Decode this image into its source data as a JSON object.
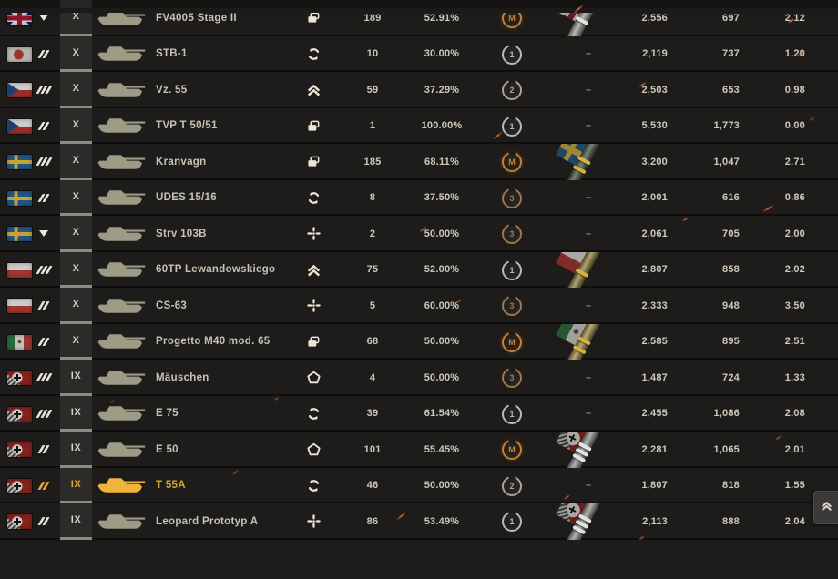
{
  "colors": {
    "highlight_gold": "#d8a62e",
    "text": "#ccc9ba",
    "badge_mastery": "#cd7e2c",
    "badge_class1": "#b4bac0",
    "badge_class2": "#aba393",
    "badge_class3": "#9d7751",
    "ember": "#ff6e32"
  },
  "no_marks_symbol": "–",
  "scroll_button": {
    "icon": "double-chevron-up"
  },
  "table": {
    "rows": [
      {
        "nation": "uk",
        "marker": "triangle-down",
        "tier": "X",
        "name": "FV4005 Stage II",
        "role": "cards",
        "battles": "189",
        "win_rate": "52.91%",
        "badge": "M",
        "marks": {
          "nation": "uk",
          "rings": 1,
          "barrel_color": "#a9a59d",
          "ring_color": "#e4e4e2"
        },
        "avg_damage": "2,556",
        "avg_xp": "697",
        "ratio": "2.12",
        "highlighted": false
      },
      {
        "nation": "japan",
        "marker": "double-slash",
        "tier": "X",
        "name": "STB-1",
        "role": "circle-arrows",
        "battles": "10",
        "win_rate": "30.00%",
        "badge": "1",
        "marks": null,
        "avg_damage": "2,119",
        "avg_xp": "737",
        "ratio": "1.20",
        "highlighted": false
      },
      {
        "nation": "czechia",
        "marker": "triple-slash",
        "tier": "X",
        "name": "Vz. 55",
        "role": "double-chevron-up",
        "battles": "59",
        "win_rate": "37.29%",
        "badge": "2",
        "marks": null,
        "avg_damage": "2,503",
        "avg_xp": "653",
        "ratio": "0.98",
        "highlighted": false
      },
      {
        "nation": "czechia",
        "marker": "double-slash",
        "tier": "X",
        "name": "TVP T 50/51",
        "role": "cards",
        "battles": "1",
        "win_rate": "100.00%",
        "badge": "1",
        "marks": null,
        "avg_damage": "5,530",
        "avg_xp": "1,773",
        "ratio": "0.00",
        "highlighted": false
      },
      {
        "nation": "sweden",
        "marker": "triple-slash",
        "tier": "X",
        "name": "Kranvagn",
        "role": "cards",
        "battles": "185",
        "win_rate": "68.11%",
        "badge": "M",
        "marks": {
          "nation": "sweden",
          "rings": 2,
          "barrel_color": "#53614c",
          "ring_color": "#d8b23e"
        },
        "avg_damage": "3,200",
        "avg_xp": "1,047",
        "ratio": "2.71",
        "highlighted": false
      },
      {
        "nation": "sweden",
        "marker": "double-slash",
        "tier": "X",
        "name": "UDES 15/16",
        "role": "circle-arrows",
        "battles": "8",
        "win_rate": "37.50%",
        "badge": "3",
        "marks": null,
        "avg_damage": "2,001",
        "avg_xp": "616",
        "ratio": "0.86",
        "highlighted": false
      },
      {
        "nation": "sweden",
        "marker": "triangle-down",
        "tier": "X",
        "name": "Strv 103B",
        "role": "crosshair",
        "battles": "2",
        "win_rate": "50.00%",
        "badge": "3",
        "marks": null,
        "avg_damage": "2,061",
        "avg_xp": "705",
        "ratio": "2.00",
        "highlighted": false
      },
      {
        "nation": "poland",
        "marker": "triple-slash",
        "tier": "X",
        "name": "60TP Lewandowskiego",
        "role": "double-chevron-up",
        "battles": "75",
        "win_rate": "52.00%",
        "badge": "1",
        "marks": {
          "nation": "poland",
          "rings": 1,
          "barrel_color": "#9a8848",
          "ring_color": "#d8b23e"
        },
        "avg_damage": "2,807",
        "avg_xp": "858",
        "ratio": "2.02",
        "highlighted": false
      },
      {
        "nation": "poland",
        "marker": "double-slash",
        "tier": "X",
        "name": "CS-63",
        "role": "crosshair",
        "battles": "5",
        "win_rate": "60.00%",
        "badge": "3",
        "marks": null,
        "avg_damage": "2,333",
        "avg_xp": "948",
        "ratio": "3.50",
        "highlighted": false
      },
      {
        "nation": "italy",
        "marker": "double-slash",
        "tier": "X",
        "name": "Progetto M40 mod. 65",
        "role": "cards",
        "battles": "68",
        "win_rate": "50.00%",
        "badge": "M",
        "marks": {
          "nation": "italy",
          "rings": 2,
          "barrel_color": "#a8924f",
          "ring_color": "#d8b23e"
        },
        "avg_damage": "2,585",
        "avg_xp": "895",
        "ratio": "2.51",
        "highlighted": false
      },
      {
        "nation": "germany",
        "marker": "triple-slash",
        "tier": "IX",
        "name": "Mäuschen",
        "role": "pentagon",
        "battles": "4",
        "win_rate": "50.00%",
        "badge": "3",
        "marks": null,
        "avg_damage": "1,487",
        "avg_xp": "724",
        "ratio": "1.33",
        "highlighted": false
      },
      {
        "nation": "germany",
        "marker": "triple-slash",
        "tier": "IX",
        "name": "E 75",
        "role": "circle-arrows",
        "battles": "39",
        "win_rate": "61.54%",
        "badge": "1",
        "marks": null,
        "avg_damage": "2,455",
        "avg_xp": "1,086",
        "ratio": "2.08",
        "highlighted": false
      },
      {
        "nation": "germany",
        "marker": "double-slash",
        "tier": "IX",
        "name": "E 50",
        "role": "pentagon",
        "battles": "101",
        "win_rate": "55.45%",
        "badge": "M",
        "marks": {
          "nation": "germany",
          "rings": 3,
          "barrel_color": "#9b9b99",
          "ring_color": "#e4e4e2"
        },
        "avg_damage": "2,281",
        "avg_xp": "1,065",
        "ratio": "2.01",
        "highlighted": false
      },
      {
        "nation": "germany",
        "marker": "double-slash",
        "tier": "IX",
        "name": "T 55A",
        "role": "circle-arrows",
        "battles": "46",
        "win_rate": "50.00%",
        "badge": "2",
        "marks": null,
        "avg_damage": "1,807",
        "avg_xp": "818",
        "ratio": "1.55",
        "highlighted": true
      },
      {
        "nation": "germany",
        "marker": "double-slash",
        "tier": "IX",
        "name": "Leopard Prototyp A",
        "role": "crosshair",
        "battles": "86",
        "win_rate": "53.49%",
        "badge": "1",
        "marks": {
          "nation": "germany",
          "rings": 3,
          "barrel_color": "#9b9b99",
          "ring_color": "#e4e4e2"
        },
        "avg_damage": "2,113",
        "avg_xp": "888",
        "ratio": "2.04",
        "highlighted": false
      }
    ]
  }
}
